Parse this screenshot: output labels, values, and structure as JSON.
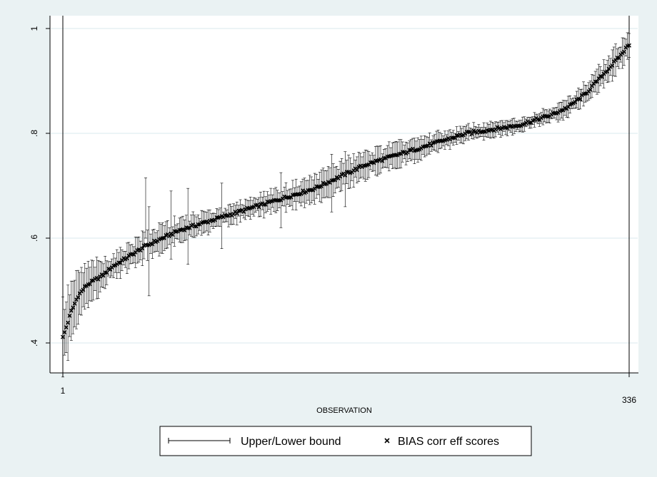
{
  "chart_data": {
    "type": "scatter",
    "title": "",
    "xlabel": "OBSERVATION",
    "ylabel": "",
    "n_observations": 336,
    "xlim": [
      1,
      336
    ],
    "ylim": [
      0.4,
      1.0
    ],
    "x_ticks": [
      {
        "value": 1,
        "label": "1"
      },
      {
        "value": 336,
        "label": "336"
      }
    ],
    "y_ticks": [
      {
        "value": 0.4,
        "label": ".4"
      },
      {
        "value": 0.6,
        "label": ".6"
      },
      {
        "value": 0.8,
        "label": ".8"
      },
      {
        "value": 1.0,
        "label": "1"
      }
    ],
    "grid": true,
    "legend_position": "bottom",
    "colors": {
      "background": "#eaf2f3",
      "plot_area": "#ffffff",
      "gridline": "#d9e9ec",
      "marks": "#000000"
    },
    "series": [
      {
        "name": "Upper/Lower bound",
        "kind": "error-bar",
        "half_width_profile": [
          [
            1,
            0.06
          ],
          [
            10,
            0.04
          ],
          [
            30,
            0.02
          ],
          [
            50,
            0.025
          ],
          [
            70,
            0.02
          ],
          [
            100,
            0.015
          ],
          [
            130,
            0.02
          ],
          [
            160,
            0.025
          ],
          [
            200,
            0.02
          ],
          [
            240,
            0.012
          ],
          [
            280,
            0.012
          ],
          [
            300,
            0.015
          ],
          [
            320,
            0.02
          ],
          [
            336,
            0.025
          ]
        ],
        "outlier_bars": [
          {
            "x": 50,
            "upper": 0.715,
            "lower": 0.6
          },
          {
            "x": 52,
            "upper": 0.66,
            "lower": 0.49
          },
          {
            "x": 65,
            "upper": 0.69,
            "lower": 0.56
          },
          {
            "x": 75,
            "upper": 0.695,
            "lower": 0.55
          },
          {
            "x": 95,
            "upper": 0.705,
            "lower": 0.58
          },
          {
            "x": 130,
            "upper": 0.725,
            "lower": 0.62
          },
          {
            "x": 160,
            "upper": 0.76,
            "lower": 0.65
          },
          {
            "x": 168,
            "upper": 0.765,
            "lower": 0.66
          }
        ]
      },
      {
        "name": "BIAS corr eff scores",
        "kind": "marker",
        "marker": "x",
        "curve_profile": [
          [
            1,
            0.41
          ],
          [
            3,
            0.43
          ],
          [
            6,
            0.46
          ],
          [
            10,
            0.49
          ],
          [
            15,
            0.51
          ],
          [
            20,
            0.52
          ],
          [
            25,
            0.53
          ],
          [
            30,
            0.545
          ],
          [
            40,
            0.565
          ],
          [
            50,
            0.585
          ],
          [
            60,
            0.6
          ],
          [
            70,
            0.615
          ],
          [
            80,
            0.625
          ],
          [
            90,
            0.635
          ],
          [
            100,
            0.645
          ],
          [
            110,
            0.655
          ],
          [
            120,
            0.665
          ],
          [
            130,
            0.675
          ],
          [
            140,
            0.685
          ],
          [
            150,
            0.695
          ],
          [
            160,
            0.71
          ],
          [
            170,
            0.725
          ],
          [
            180,
            0.74
          ],
          [
            190,
            0.75
          ],
          [
            200,
            0.76
          ],
          [
            210,
            0.77
          ],
          [
            220,
            0.78
          ],
          [
            230,
            0.79
          ],
          [
            240,
            0.8
          ],
          [
            250,
            0.805
          ],
          [
            260,
            0.81
          ],
          [
            270,
            0.815
          ],
          [
            280,
            0.825
          ],
          [
            290,
            0.835
          ],
          [
            300,
            0.85
          ],
          [
            310,
            0.875
          ],
          [
            320,
            0.91
          ],
          [
            330,
            0.945
          ],
          [
            336,
            0.97
          ]
        ]
      }
    ]
  }
}
